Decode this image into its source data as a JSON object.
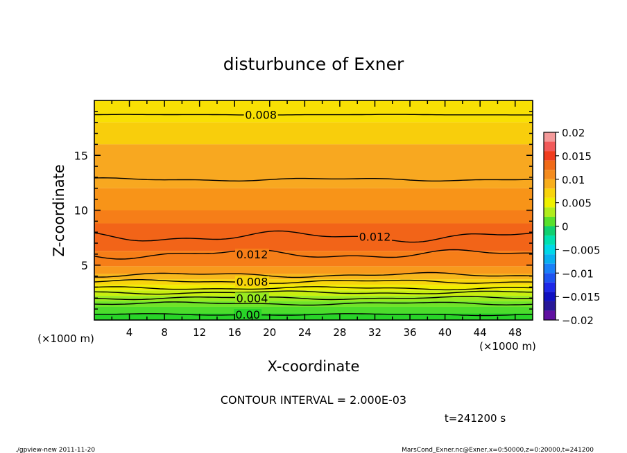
{
  "chart_data": {
    "type": "contour",
    "title": "disturbunce of Exner",
    "xlabel": "X-coordinate",
    "ylabel": "Z-coordinate",
    "x_unit": "(×1000 m)",
    "y_unit": "(×1000 m)",
    "xlim": [
      0,
      50
    ],
    "ylim": [
      0,
      20
    ],
    "x_ticks": [
      4,
      8,
      12,
      16,
      20,
      24,
      28,
      32,
      36,
      40,
      44,
      48
    ],
    "y_ticks": [
      5,
      10,
      15
    ],
    "contour_interval_text": "CONTOUR INTERVAL = 2.000E-03",
    "time_text": "t=241200 s",
    "colorbar": {
      "ticks": [
        "0.02",
        "0.015",
        "0.01",
        "0.005",
        "0",
        "−0.005",
        "−0.01",
        "−0.015",
        "−0.02"
      ],
      "range": [
        -0.02,
        0.02
      ],
      "levels": [
        {
          "from": 0.018,
          "to": 0.02,
          "color": "#f49a9a"
        },
        {
          "from": 0.016,
          "to": 0.018,
          "color": "#f25a5a"
        },
        {
          "from": 0.014,
          "to": 0.016,
          "color": "#f03c1e"
        },
        {
          "from": 0.012,
          "to": 0.014,
          "color": "#f06a18"
        },
        {
          "from": 0.01,
          "to": 0.012,
          "color": "#f48c1e"
        },
        {
          "from": 0.008,
          "to": 0.01,
          "color": "#f8ae1c"
        },
        {
          "from": 0.006,
          "to": 0.008,
          "color": "#f8d40c"
        },
        {
          "from": 0.004,
          "to": 0.006,
          "color": "#eef000"
        },
        {
          "from": 0.002,
          "to": 0.004,
          "color": "#b0ec1c"
        },
        {
          "from": 0.0,
          "to": 0.002,
          "color": "#58e02c"
        },
        {
          "from": -0.002,
          "to": 0.0,
          "color": "#10d070"
        },
        {
          "from": -0.004,
          "to": -0.002,
          "color": "#00e0b0"
        },
        {
          "from": -0.006,
          "to": -0.004,
          "color": "#00d8e8"
        },
        {
          "from": -0.008,
          "to": -0.006,
          "color": "#08b0f0"
        },
        {
          "from": -0.01,
          "to": -0.008,
          "color": "#1a80f8"
        },
        {
          "from": -0.012,
          "to": -0.01,
          "color": "#1e54f0"
        },
        {
          "from": -0.014,
          "to": -0.012,
          "color": "#1e28e8"
        },
        {
          "from": -0.016,
          "to": -0.014,
          "color": "#1010c0"
        },
        {
          "from": -0.018,
          "to": -0.016,
          "color": "#281898"
        },
        {
          "from": -0.02,
          "to": -0.018,
          "color": "#6010a0"
        }
      ]
    },
    "bands": [
      {
        "z_bottom": 18.0,
        "z_top": 20,
        "color": "#f8e004"
      },
      {
        "z_bottom": 16.0,
        "z_top": 18.0,
        "color": "#f8ce0c"
      },
      {
        "z_bottom": 12.0,
        "z_top": 16.0,
        "color": "#f8a820"
      },
      {
        "z_bottom": 10.0,
        "z_top": 12.0,
        "color": "#f89418"
      },
      {
        "z_bottom": 8.8,
        "z_top": 10.0,
        "color": "#f67e18"
      },
      {
        "z_bottom": 6.3,
        "z_top": 8.8,
        "color": "#f26418"
      },
      {
        "z_bottom": 4.9,
        "z_top": 6.3,
        "color": "#f67e18"
      },
      {
        "z_bottom": 4.2,
        "z_top": 4.9,
        "color": "#f89a1c"
      },
      {
        "z_bottom": 3.7,
        "z_top": 4.2,
        "color": "#f8b81c"
      },
      {
        "z_bottom": 3.2,
        "z_top": 3.7,
        "color": "#f8d40c"
      },
      {
        "z_bottom": 2.7,
        "z_top": 3.2,
        "color": "#f0ee00"
      },
      {
        "z_bottom": 2.2,
        "z_top": 2.7,
        "color": "#c8ee10"
      },
      {
        "z_bottom": 1.7,
        "z_top": 2.2,
        "color": "#98ea20"
      },
      {
        "z_bottom": 1.2,
        "z_top": 1.7,
        "color": "#70e428"
      },
      {
        "z_bottom": 0.6,
        "z_top": 1.2,
        "color": "#4cdc2c"
      },
      {
        "z_bottom": 0,
        "z_top": 0.6,
        "color": "#28d428"
      }
    ],
    "contour_lines": [
      {
        "z": 18.7,
        "wave": 0.02,
        "label": "0.008",
        "label_x": 19
      },
      {
        "z": 12.8,
        "wave": 0.1,
        "label": "",
        "label_x": null
      },
      {
        "z": 7.6,
        "wave": 0.35,
        "label": "0.012",
        "label_x": 32
      },
      {
        "z": 6.0,
        "wave": 0.3,
        "label": "0.012",
        "label_x": 18
      },
      {
        "z": 4.1,
        "wave": 0.15,
        "label": "",
        "label_x": null
      },
      {
        "z": 3.5,
        "wave": 0.12,
        "label": "0.008",
        "label_x": 18
      },
      {
        "z": 2.9,
        "wave": 0.1,
        "label": "",
        "label_x": null
      },
      {
        "z": 2.5,
        "wave": 0.1,
        "label": "",
        "label_x": null
      },
      {
        "z": 2.0,
        "wave": 0.1,
        "label": "0.004",
        "label_x": 18
      },
      {
        "z": 1.5,
        "wave": 0.1,
        "label": "",
        "label_x": null
      },
      {
        "z": 0.5,
        "wave": 0.06,
        "label": "0.00",
        "label_x": 17.5
      }
    ]
  },
  "footer": {
    "left": "./gpview-new   2011-11-20",
    "right": "MarsCond_Exner.nc@Exner,x=0:50000,z=0:20000,t=241200"
  }
}
